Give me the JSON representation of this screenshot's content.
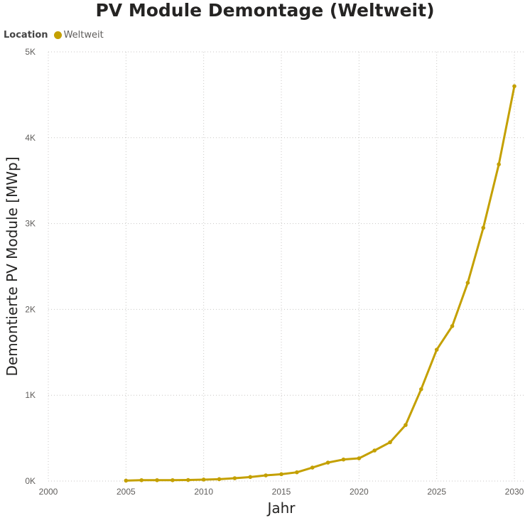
{
  "chart_data": {
    "type": "line",
    "title": "PV Module Demontage (Weltweit)",
    "xlabel": "Jahr",
    "ylabel": "Demontierte PV Module [MWp]",
    "legend": {
      "title": "Location",
      "placement": "top-left",
      "entries": [
        "Weltweit"
      ]
    },
    "xlim": [
      2000,
      2030
    ],
    "ylim": [
      0,
      5000
    ],
    "x_ticks": [
      2000,
      2005,
      2010,
      2015,
      2020,
      2025,
      2030
    ],
    "x_tick_labels": [
      "2000",
      "2005",
      "2010",
      "2015",
      "2020",
      "2025",
      "2030"
    ],
    "y_ticks": [
      0,
      1000,
      2000,
      3000,
      4000,
      5000
    ],
    "y_tick_labels": [
      "0K",
      "1K",
      "2K",
      "3K",
      "4K",
      "5K"
    ],
    "grid": true,
    "series": [
      {
        "name": "Weltweit",
        "color": "#c4a000",
        "x": [
          2005,
          2006,
          2007,
          2008,
          2009,
          2010,
          2011,
          2012,
          2013,
          2014,
          2015,
          2016,
          2017,
          2018,
          2019,
          2020,
          2021,
          2022,
          2023,
          2024,
          2025,
          2026,
          2027,
          2028,
          2029,
          2030
        ],
        "values": [
          5,
          10,
          10,
          10,
          12,
          17,
          22,
          33,
          47,
          66,
          80,
          102,
          157,
          215,
          251,
          265,
          356,
          452,
          653,
          1070,
          1530,
          1805,
          2310,
          2950,
          3690,
          4600
        ]
      }
    ]
  }
}
